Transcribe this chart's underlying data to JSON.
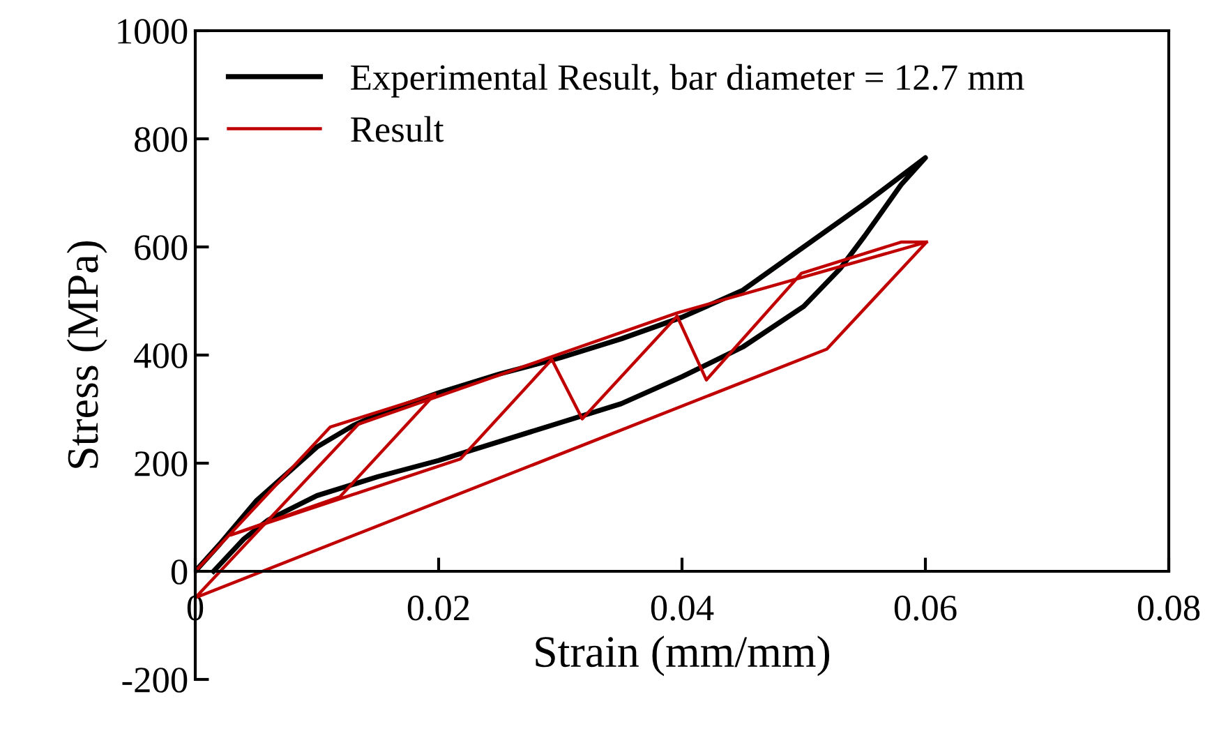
{
  "chart_data": {
    "type": "line",
    "xlabel": "Strain (mm/mm)",
    "ylabel": "Stress (MPa)",
    "xlim": [
      0,
      0.08
    ],
    "xticks": [
      0,
      0.02,
      0.04,
      0.06,
      0.08
    ],
    "ylim": [
      -200,
      1000
    ],
    "yticks": [
      -200,
      0,
      200,
      400,
      600,
      800,
      1000
    ],
    "grid": false,
    "legend": "top left",
    "marker": "none",
    "line_style": "solid",
    "series": [
      {
        "name": "Experimental Result, bar diameter = 12.7 mm",
        "color": "#000000",
        "x": [
          0,
          0.002,
          0.005,
          0.008,
          0.01,
          0.013,
          0.015,
          0.02,
          0.025,
          0.03,
          0.035,
          0.04,
          0.045,
          0.05,
          0.055,
          0.06,
          0.058,
          0.055,
          0.053,
          0.05,
          0.045,
          0.04,
          0.035,
          0.03,
          0.025,
          0.02,
          0.015,
          0.01,
          0.006,
          0.004,
          0.0015
        ],
        "values": [
          0,
          50,
          130,
          190,
          230,
          270,
          290,
          330,
          365,
          395,
          430,
          470,
          520,
          600,
          680,
          765,
          715,
          620,
          560,
          490,
          415,
          360,
          310,
          275,
          240,
          205,
          175,
          140,
          95,
          60,
          0
        ]
      },
      {
        "name": "Result",
        "color": "#c00000",
        "x": [
          0,
          0.0111,
          0.0197,
          0.0119,
          0.0029,
          0.0218,
          0.0293,
          0.0318,
          0.0396,
          0.042,
          0.0498,
          0.058,
          0.0601,
          0.0519,
          0,
          0.0134,
          0.0396,
          0.0601
        ],
        "values": [
          0,
          267,
          328,
          138,
          67,
          208,
          392,
          282,
          472,
          354,
          551,
          609,
          609,
          411,
          -49,
          272,
          478,
          609
        ]
      }
    ]
  }
}
